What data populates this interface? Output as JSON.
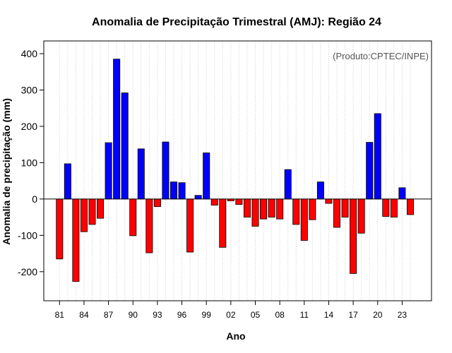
{
  "chart_data": {
    "type": "bar",
    "title": "Anomalia de Precipitação Trimestral (AMJ): Região 24",
    "xlabel": "Ano",
    "ylabel": "Anomalia de precipitação (mm)",
    "annotation": "(Produto:CPTEC/INPE)",
    "ylim": [
      -280,
      435
    ],
    "yticks": [
      -200,
      -100,
      0,
      100,
      200,
      300,
      400
    ],
    "grid": "vertical dotted",
    "colors": {
      "positive": "#0000ff",
      "negative": "#ff0000",
      "bar_border": "#000000"
    },
    "categories": [
      "1981",
      "1982",
      "1983",
      "1984",
      "1985",
      "1986",
      "1987",
      "1988",
      "1989",
      "1990",
      "1991",
      "1992",
      "1993",
      "1994",
      "1995",
      "1996",
      "1997",
      "1998",
      "1999",
      "2000",
      "2001",
      "2002",
      "2003",
      "2004",
      "2005",
      "2006",
      "2007",
      "2008",
      "2009",
      "2010",
      "2011",
      "2012",
      "2013",
      "2014",
      "2015",
      "2016",
      "2017",
      "2018",
      "2019",
      "2020",
      "2021",
      "2022",
      "2023",
      "2024"
    ],
    "values": [
      -165,
      97,
      -227,
      -90,
      -70,
      -53,
      155,
      385,
      292,
      -101,
      138,
      -148,
      -21,
      157,
      47,
      45,
      -146,
      10,
      127,
      -17,
      -133,
      -5,
      -15,
      -50,
      -75,
      -55,
      -50,
      -55,
      81,
      -70,
      -114,
      -57,
      47,
      -12,
      -78,
      -50,
      -205,
      -94,
      156,
      235,
      -48,
      -50,
      31,
      -43
    ],
    "tick_labels": [
      "81",
      "84",
      "87",
      "90",
      "93",
      "96",
      "99",
      "02",
      "05",
      "08",
      "11",
      "14",
      "17",
      "20",
      "23"
    ]
  }
}
